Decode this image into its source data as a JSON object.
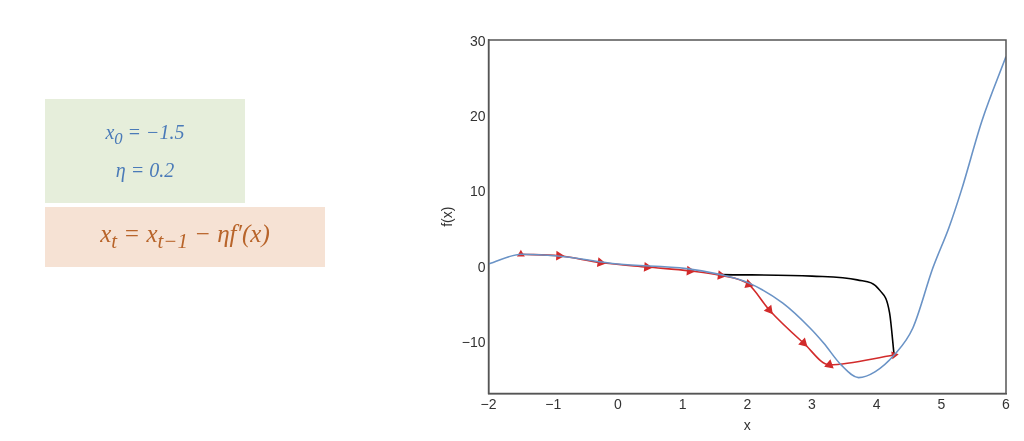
{
  "chart_data": {
    "type": "line",
    "xlabel": "x",
    "ylabel": "f(x)",
    "annotations": [
      "x$_{0}$ = −1.5",
      "η = 0.2",
      "x$_{t}$ = x$_{t−1}$ − ηf′(x)"
    ],
    "xlim": [
      -2,
      6
    ],
    "ylim": [
      -16.7,
      30.3
    ],
    "xticks": [
      {
        "value": -2,
        "label": "−2"
      },
      {
        "value": -1,
        "label": "−1"
      },
      0,
      1,
      2,
      3,
      4,
      5,
      6
    ],
    "yticks": [
      {
        "value": -10,
        "label": "−10"
      },
      0,
      10,
      20,
      30
    ],
    "grid": false,
    "legend": false,
    "series": [
      {
        "color": "#6a93c6",
        "marker": "none",
        "x": [
          -2,
          -1.49,
          -0.96,
          0,
          1.06,
          1.59,
          2.02,
          2.55,
          2.97,
          3.18,
          3.45,
          3.72,
          3.98,
          4.27,
          4.56,
          4.87,
          5.12,
          5.31,
          5.63,
          6
        ],
        "values": [
          0.5,
          1.8,
          1.6,
          0.5,
          -0.1,
          -0.9,
          -2.0,
          -4.7,
          -8.0,
          -10.0,
          -12.9,
          -14.6,
          -13.8,
          -11.6,
          -8.0,
          0,
          5.4,
          10.3,
          19.6,
          28.1
        ]
      },
      {
        "color": "#d22b2b",
        "marker": "triangle",
        "x": [
          -1.5,
          -0.91,
          -0.27,
          0.45,
          1.11,
          1.59,
          2.02,
          2.34,
          2.87,
          3.27,
          4.27
        ],
        "values": [
          1.8,
          1.6,
          0.7,
          0.1,
          -0.4,
          -1.0,
          -2.2,
          -5.6,
          -10.0,
          -12.9,
          -11.6
        ]
      },
      {
        "color": "#000000",
        "marker": "none",
        "x": [
          4.27,
          4.2,
          4.05,
          3.7,
          3.0,
          1.59
        ],
        "values": [
          -11.6,
          -6.0,
          -3.0,
          -1.6,
          -1.1,
          -0.9
        ]
      }
    ]
  }
}
